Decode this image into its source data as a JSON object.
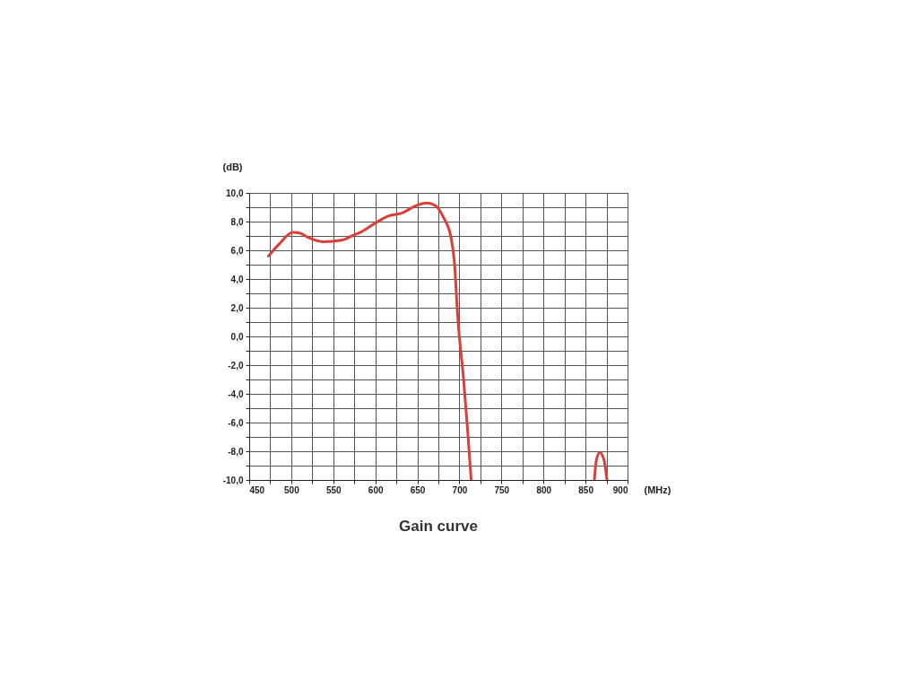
{
  "chart_data": {
    "type": "line",
    "title": "Gain curve",
    "xlabel": "(MHz)",
    "ylabel": "(dB)",
    "xlim": [
      450,
      900
    ],
    "ylim": [
      -10,
      10
    ],
    "xticks": [
      450,
      {
        "value": 475,
        "label": null
      },
      500,
      {
        "value": 525,
        "label": null
      },
      550,
      {
        "value": 575,
        "label": null
      },
      600,
      {
        "value": 625,
        "label": null
      },
      650,
      {
        "value": 675,
        "label": null
      },
      700,
      {
        "value": 725,
        "label": null
      },
      750,
      {
        "value": 775,
        "label": null
      },
      800,
      {
        "value": 825,
        "label": null
      },
      850,
      {
        "value": 875,
        "label": null
      },
      900
    ],
    "yticks": [
      {
        "value": -10,
        "label": "-10,0"
      },
      {
        "value": -9,
        "label": null
      },
      {
        "value": -8,
        "label": "-8,0"
      },
      {
        "value": -7,
        "label": null
      },
      {
        "value": -6,
        "label": "-6,0"
      },
      {
        "value": -5,
        "label": null
      },
      {
        "value": -4,
        "label": "-4,0"
      },
      {
        "value": -3,
        "label": null
      },
      {
        "value": -2,
        "label": "-2,0"
      },
      {
        "value": -1,
        "label": null
      },
      {
        "value": 0,
        "label": "0,0"
      },
      {
        "value": 1,
        "label": null
      },
      {
        "value": 2,
        "label": "2,0"
      },
      {
        "value": 3,
        "label": null
      },
      {
        "value": 4,
        "label": "4,0"
      },
      {
        "value": 5,
        "label": null
      },
      {
        "value": 6,
        "label": "6,0"
      },
      {
        "value": 7,
        "label": null
      },
      {
        "value": 8,
        "label": "8,0"
      },
      {
        "value": 9,
        "label": null
      },
      {
        "value": 10,
        "label": "10,0"
      }
    ],
    "grid": true,
    "line_style": "solid",
    "series": [
      {
        "color": "#d9403a",
        "x": [
          473,
          485,
          502,
          510,
          520,
          538,
          560,
          572,
          584,
          600,
          616,
          632,
          648,
          661,
          672,
          681,
          690,
          694,
          698,
          705,
          710,
          714
        ],
        "values": [
          5.6,
          6.4,
          7.25,
          7.2,
          6.9,
          6.6,
          6.7,
          7.0,
          7.3,
          7.9,
          8.4,
          8.6,
          9.1,
          9.3,
          9.1,
          8.3,
          6.9,
          5.2,
          1.4,
          -3.0,
          -6.7,
          -10
        ]
      },
      {
        "color": "#d9403a",
        "x": [
          860.5,
          863,
          867,
          872,
          875.5
        ],
        "values": [
          -10,
          -8.6,
          -8.1,
          -8.6,
          -10
        ]
      }
    ]
  }
}
